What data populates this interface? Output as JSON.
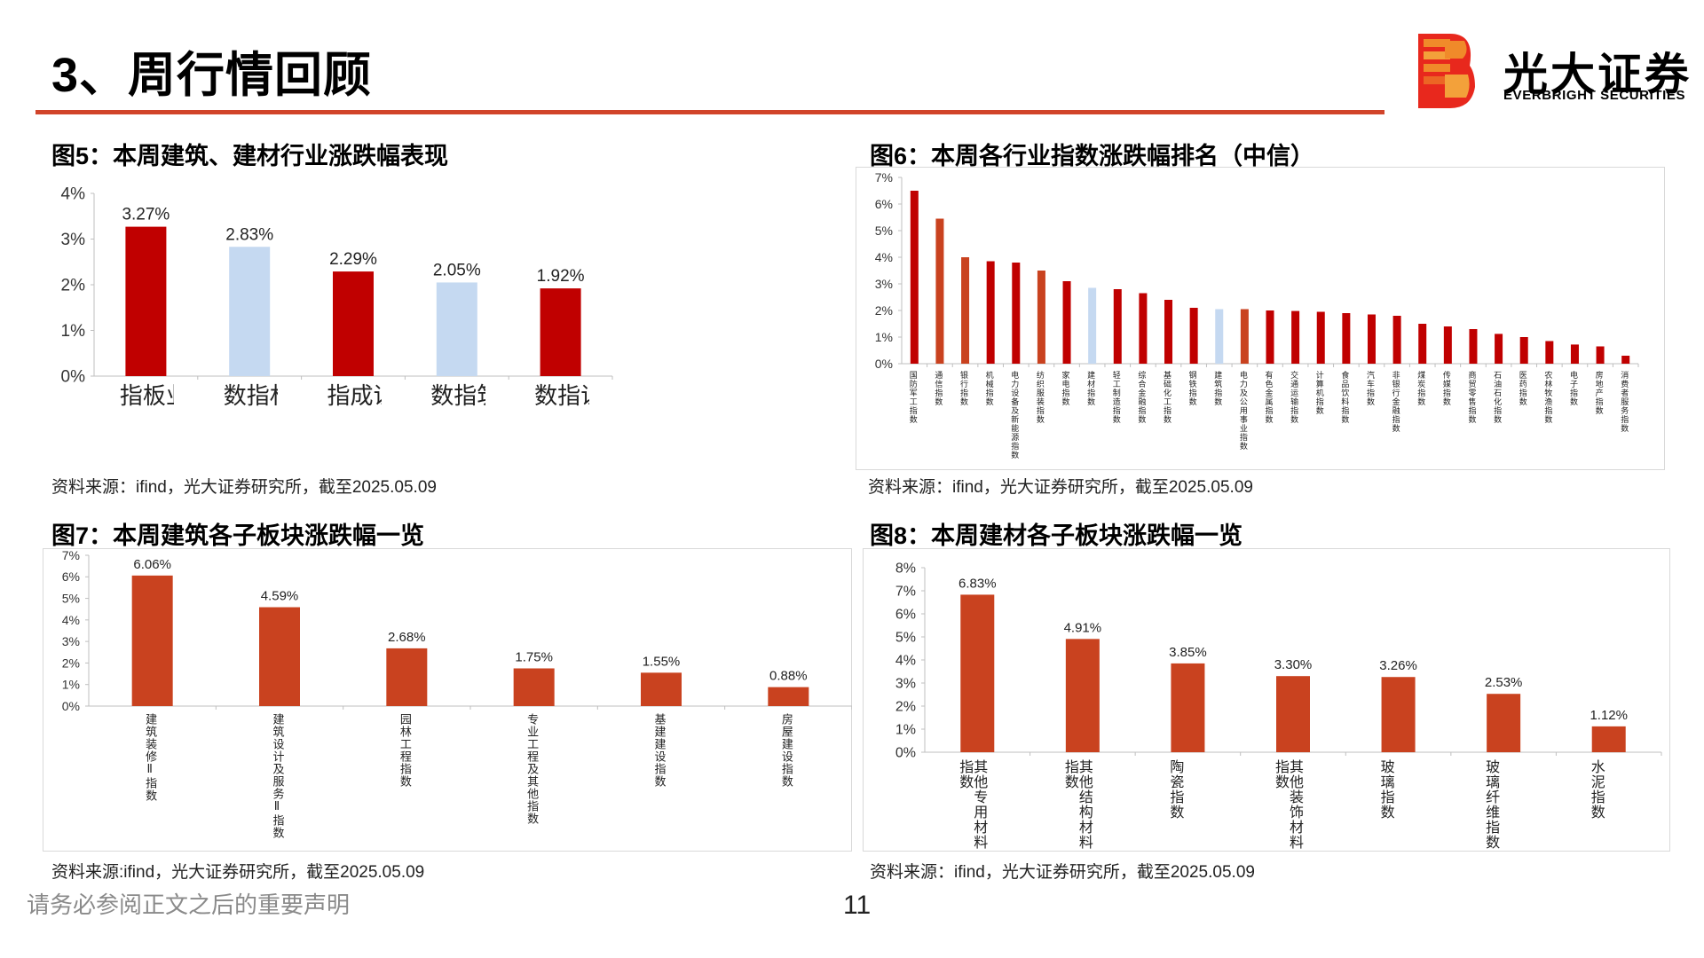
{
  "page": {
    "title": "3、周行情回顾",
    "footer_note": "请务必参阅正文之后的重要声明",
    "page_number": "11"
  },
  "brand": {
    "name_cn": "光大证券",
    "name_en": "EVERBRIGHT SECURITIES",
    "accent": "#d1442a",
    "logo_colors": [
      "#e8281d",
      "#f08a2a"
    ]
  },
  "colors": {
    "dark_red": "#c00000",
    "light_blue": "#c5d9f1",
    "orange_red": "#c9421f",
    "brown_red": "#cc4b1e",
    "axis": "#bfbfbf"
  },
  "figures": [
    {
      "title": "图5：本周建筑、建材行业涨跌幅表现",
      "source": "资料来源：ifind，光大证券研究所，截至2025.05.09"
    },
    {
      "title": "图6：本周各行业指数涨跌幅排名（中信）",
      "source": "资料来源：ifind，光大证券研究所，截至2025.05.09"
    },
    {
      "title": "图7：本周建筑各子板块涨跌幅一览",
      "source": "资料来源:ifind，光大证券研究所，截至2025.05.09"
    },
    {
      "title": "图8：本周建材各子板块涨跌幅一览",
      "source": "资料来源：ifind，光大证券研究所，截至2025.05.09"
    }
  ],
  "chart_data": [
    {
      "type": "bar",
      "categories": [
        "创业板指",
        "建材指数",
        "深证成指",
        "建筑指数",
        "上证指数"
      ],
      "values": [
        3.27,
        2.83,
        2.29,
        2.05,
        1.92
      ],
      "data_labels": [
        "3.27%",
        "2.83%",
        "2.29%",
        "2.05%",
        "1.92%"
      ],
      "colors": [
        "#c00000",
        "#c5d9f1",
        "#c00000",
        "#c5d9f1",
        "#c00000"
      ],
      "yticks": [
        "0%",
        "1%",
        "2%",
        "3%",
        "4%"
      ],
      "ylim": [
        0,
        4
      ],
      "grid": false
    },
    {
      "type": "bar",
      "categories": [
        "国防军工指数",
        "通信指数",
        "银行指数",
        "机械指数",
        "电力设备及新能源指数",
        "纺织服装指数",
        "家电指数",
        "建材指数",
        "轻工制造指数",
        "综合金融指数",
        "基础化工指数",
        "钢铁指数",
        "建筑指数",
        "电力及公用事业指数",
        "有色金属指数",
        "交通运输指数",
        "计算机指数",
        "食品饮料指数",
        "汽车指数",
        "非银行金融指数",
        "煤炭指数",
        "传媒指数",
        "商贸零售指数",
        "石油石化指数",
        "医药指数",
        "农林牧渔指数",
        "电子指数",
        "房地产指数",
        "消费者服务指数"
      ],
      "values": [
        6.5,
        5.45,
        4.0,
        3.85,
        3.8,
        3.5,
        3.1,
        2.85,
        2.8,
        2.65,
        2.4,
        2.1,
        2.05,
        2.05,
        2.0,
        1.98,
        1.95,
        1.9,
        1.85,
        1.8,
        1.5,
        1.4,
        1.3,
        1.12,
        1.0,
        0.85,
        0.72,
        0.65,
        0.3
      ],
      "colors": [
        "#c00000",
        "#c9421f",
        "#c9421f",
        "#c00000",
        "#c00000",
        "#c9421f",
        "#c00000",
        "#c5d9f1",
        "#c00000",
        "#c00000",
        "#c00000",
        "#c00000",
        "#c5d9f1",
        "#c9421f",
        "#c00000",
        "#c00000",
        "#c00000",
        "#c00000",
        "#c00000",
        "#c00000",
        "#c00000",
        "#c00000",
        "#c00000",
        "#c00000",
        "#c00000",
        "#c00000",
        "#c00000",
        "#c00000",
        "#c00000"
      ],
      "yticks": [
        "0%",
        "1%",
        "2%",
        "3%",
        "4%",
        "5%",
        "6%",
        "7%"
      ],
      "ylim": [
        0,
        7
      ],
      "grid": false
    },
    {
      "type": "bar",
      "categories": [
        "建筑装修Ⅱ指数",
        "建筑设计及服务Ⅱ指数",
        "园林工程指数",
        "专业工程及其他指数",
        "基建建设指数",
        "房屋建设指数"
      ],
      "values": [
        6.06,
        4.59,
        2.68,
        1.75,
        1.55,
        0.88
      ],
      "data_labels": [
        "6.06%",
        "4.59%",
        "2.68%",
        "1.75%",
        "1.55%",
        "0.88%"
      ],
      "yticks": [
        "0%",
        "1%",
        "2%",
        "3%",
        "4%",
        "5%",
        "6%",
        "7%"
      ],
      "ylim": [
        0,
        7
      ],
      "grid": false
    },
    {
      "type": "bar",
      "categories": [
        "其他专用材料指数",
        "其他结构材料指数",
        "陶瓷指数",
        "其他装饰材料指数",
        "玻璃指数",
        "玻璃纤维指数",
        "水泥指数"
      ],
      "values": [
        6.83,
        4.91,
        3.85,
        3.3,
        3.26,
        2.53,
        1.12
      ],
      "data_labels": [
        "6.83%",
        "4.91%",
        "3.85%",
        "3.30%",
        "3.26%",
        "2.53%",
        "1.12%"
      ],
      "yticks": [
        "0%",
        "1%",
        "2%",
        "3%",
        "4%",
        "5%",
        "6%",
        "7%",
        "8%"
      ],
      "ylim": [
        0,
        8
      ],
      "grid": false
    }
  ]
}
